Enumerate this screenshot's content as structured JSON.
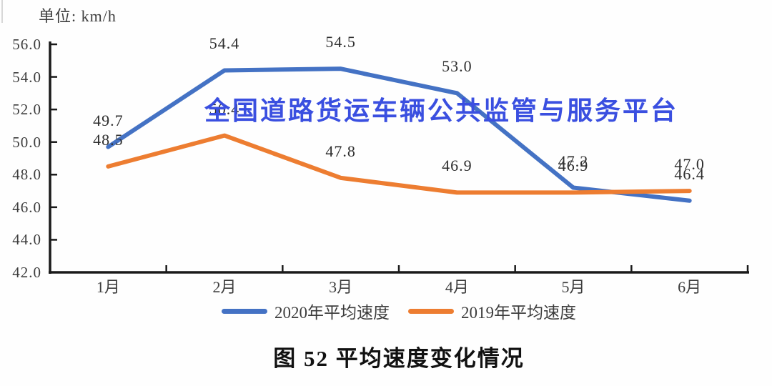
{
  "watermark": "全国道路货运车辆公共监管与服务平台",
  "caption": "图 52 平均速度变化情况",
  "colors": {
    "watermark": "#3A4FE0",
    "axis": "#1A1A1A",
    "text": "#3D3D3D",
    "background": "#FEFEFE"
  },
  "chart_data": {
    "type": "line",
    "title": "图 52 平均速度变化情况",
    "ylabel": "单位: km/h",
    "xlabel": "",
    "categories": [
      "1月",
      "2月",
      "3月",
      "4月",
      "5月",
      "6月"
    ],
    "series": [
      {
        "name": "2020年平均速度",
        "color": "#4472C4",
        "values": [
          49.7,
          54.4,
          54.5,
          53.0,
          47.2,
          46.4
        ]
      },
      {
        "name": "2019年平均速度",
        "color": "#ED7D31",
        "values": [
          48.5,
          50.4,
          47.8,
          46.9,
          46.9,
          47.0
        ]
      }
    ],
    "ylim": [
      42.0,
      56.0
    ],
    "ytick_step": 2,
    "grid": false,
    "legend_position": "bottom",
    "data_labels": true,
    "notes": "2019年 2月 data label (50.4) is visually obscured by the blue watermark overlay"
  }
}
